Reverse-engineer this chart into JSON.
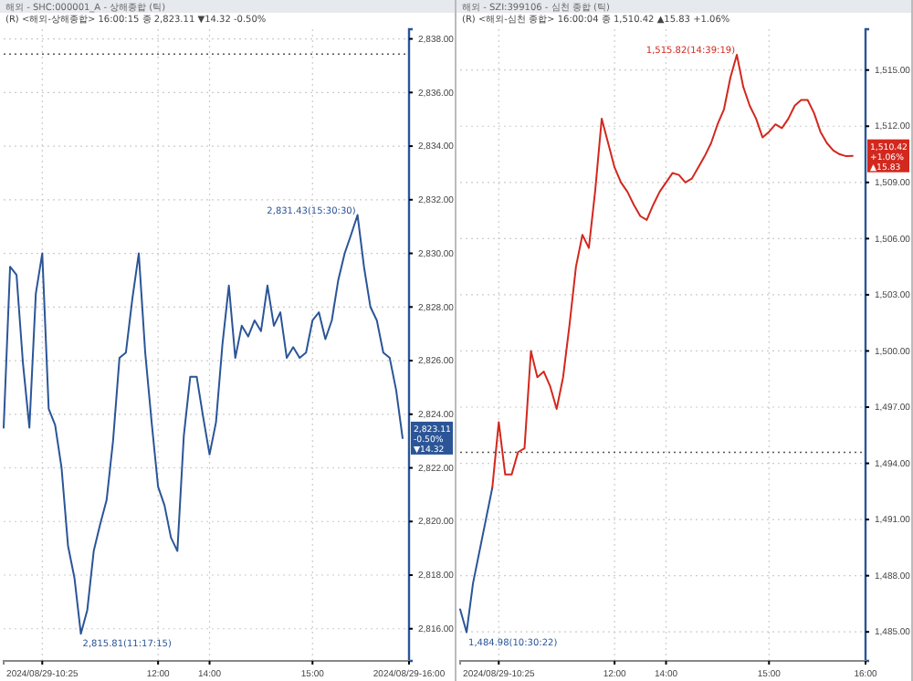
{
  "chart_data": [
    {
      "type": "line",
      "title": "해외 - SHC:000001_A - 상해종합 (틱)",
      "subtitle": "(R) <해외-상해종합> 16:00:15 종 2,823.11 ▼14.32 -0.50%",
      "categories": [
        null,
        null,
        null,
        null,
        null,
        null,
        "2024/08/29-10:25",
        null,
        null,
        null,
        null,
        null,
        null,
        null,
        null,
        null,
        null,
        null,
        null,
        null,
        null,
        null,
        null,
        null,
        "12:00",
        null,
        null,
        null,
        null,
        null,
        null,
        null,
        "14:00",
        null,
        null,
        null,
        null,
        null,
        null,
        null,
        null,
        null,
        null,
        null,
        null,
        null,
        null,
        null,
        "15:00",
        null,
        null,
        null,
        null,
        null,
        null,
        null,
        null,
        null,
        null,
        null,
        null,
        null,
        null,
        "2024/08/29-16:00"
      ],
      "series": [
        {
          "color": "#2b5597",
          "values": [
            2823.5,
            2829.5,
            2829.2,
            2825.9,
            2823.5,
            2828.5,
            2830.0,
            2824.2,
            2823.6,
            2822.0,
            2819.1,
            2817.9,
            2815.81,
            2816.7,
            2818.9,
            2819.9,
            2820.8,
            2823.0,
            2826.1,
            2826.3,
            2828.3,
            2830.0,
            2826.3,
            2823.7,
            2821.3,
            2820.6,
            2819.4,
            2818.9,
            2823.2,
            2825.4,
            2825.4,
            2823.9,
            2822.5,
            2823.7,
            2826.6,
            2828.8,
            2826.1,
            2827.3,
            2826.9,
            2827.5,
            2827.1,
            2828.8,
            2827.3,
            2827.8,
            2826.1,
            2826.5,
            2826.1,
            2826.3,
            2827.5,
            2827.8,
            2826.8,
            2827.5,
            2829.0,
            2830.0,
            2830.7,
            2831.43,
            2829.5,
            2828.0,
            2827.5,
            2826.3,
            2826.1,
            2824.9,
            2823.11,
            null
          ]
        }
      ],
      "ylim": [
        2814.8,
        2838.36
      ],
      "yticks": [
        {
          "value": 2816,
          "label": "2,816.00"
        },
        {
          "value": 2818,
          "label": "2,818.00"
        },
        {
          "value": 2820,
          "label": "2,820.00"
        },
        {
          "value": 2822,
          "label": "2,822.00"
        },
        {
          "value": 2824,
          "label": "2,824.00"
        },
        {
          "value": 2826,
          "label": "2,826.00"
        },
        {
          "value": 2828,
          "label": "2,828.00"
        },
        {
          "value": 2830,
          "label": "2,830.00"
        },
        {
          "value": 2832,
          "label": "2,832.00"
        },
        {
          "value": 2834,
          "label": "2,834.00"
        },
        {
          "value": 2836,
          "label": "2,836.00"
        },
        {
          "value": 2838,
          "label": "2,838.00"
        }
      ],
      "ref_lines": [
        {
          "axis": "y",
          "value": 2837.43,
          "color": "#555555",
          "line_style": "dotted"
        }
      ],
      "annotations": [
        "2,815.81(11:17:15)",
        "2,831.43(15:30:30)",
        "2,823.11",
        "-0.50%",
        "▼14.32"
      ],
      "grid": true,
      "marker": "none",
      "line_style": "solid"
    },
    {
      "type": "line",
      "title": "해외 - SZI:399106 - 심천 종합 (틱)",
      "subtitle": "(R) <해외-심천 종합> 16:00:04 종 1,510.42 ▲15.83 +1.06%",
      "categories": [
        null,
        null,
        null,
        null,
        null,
        null,
        "2024/08/29-10:25",
        null,
        null,
        null,
        null,
        null,
        null,
        null,
        null,
        null,
        null,
        null,
        null,
        null,
        null,
        null,
        null,
        null,
        "12:00",
        null,
        null,
        null,
        null,
        null,
        null,
        null,
        "14:00",
        null,
        null,
        null,
        null,
        null,
        null,
        null,
        null,
        null,
        null,
        null,
        null,
        null,
        null,
        null,
        "15:00",
        null,
        null,
        null,
        null,
        null,
        null,
        null,
        null,
        null,
        null,
        null,
        null,
        null,
        null,
        "16:00"
      ],
      "series": [
        {
          "color": "#2b5597",
          "values": [
            1486.2,
            1484.98,
            1487.6,
            1489.3,
            1491.0,
            1492.7,
            null,
            null,
            null,
            null,
            null,
            null,
            null,
            null,
            null,
            null,
            null,
            null,
            null,
            null,
            null,
            null,
            null,
            null,
            null,
            null,
            null,
            null,
            null,
            null,
            null,
            null,
            null,
            null,
            null,
            null,
            null,
            null,
            null,
            null,
            null,
            null,
            null,
            null,
            null,
            null,
            null,
            null,
            null,
            null,
            null,
            null,
            null,
            null,
            null,
            null,
            null,
            null,
            null,
            null,
            null,
            null,
            null,
            null
          ]
        },
        {
          "color": "#d2281e",
          "values": [
            null,
            null,
            null,
            null,
            null,
            1492.7,
            1496.2,
            1493.4,
            1493.4,
            1494.6,
            1494.8,
            1500.0,
            1498.6,
            1498.9,
            1498.1,
            1496.9,
            1498.6,
            1501.4,
            1504.5,
            1506.2,
            1505.5,
            1508.6,
            1512.4,
            1511.1,
            1509.8,
            1509.0,
            1508.5,
            1507.8,
            1507.2,
            1507.0,
            1507.8,
            1508.5,
            1509.0,
            1509.5,
            1509.4,
            1509.0,
            1509.2,
            1509.8,
            1510.4,
            1511.1,
            1512.1,
            1512.9,
            1514.6,
            1515.82,
            1514.1,
            1513.1,
            1512.4,
            1511.4,
            1511.7,
            1512.1,
            1511.9,
            1512.4,
            1513.1,
            1513.4,
            1513.4,
            1512.7,
            1511.7,
            1511.1,
            1510.7,
            1510.5,
            1510.4,
            1510.42,
            null,
            null
          ]
        }
      ],
      "ylim": [
        1483.45,
        1517.18
      ],
      "yticks": [
        {
          "value": 1485,
          "label": "1,485.00"
        },
        {
          "value": 1488,
          "label": "1,488.00"
        },
        {
          "value": 1491,
          "label": "1,491.00"
        },
        {
          "value": 1494,
          "label": "1,494.00"
        },
        {
          "value": 1497,
          "label": "1,497.00"
        },
        {
          "value": 1500,
          "label": "1,500.00"
        },
        {
          "value": 1503,
          "label": "1,503.00"
        },
        {
          "value": 1506,
          "label": "1,506.00"
        },
        {
          "value": 1509,
          "label": "1,509.00"
        },
        {
          "value": 1512,
          "label": "1,512.00"
        },
        {
          "value": 1515,
          "label": "1,515.00"
        }
      ],
      "ref_lines": [
        {
          "axis": "y",
          "value": 1494.59,
          "color": "#555555",
          "line_style": "dotted"
        }
      ],
      "annotations": [
        "1,484.98(10:30:22)",
        "1,515.82(14:39:19)",
        "1,510.42",
        "+1.06%",
        "▲15.83"
      ],
      "grid": true,
      "marker": "none",
      "line_style": "solid"
    }
  ]
}
